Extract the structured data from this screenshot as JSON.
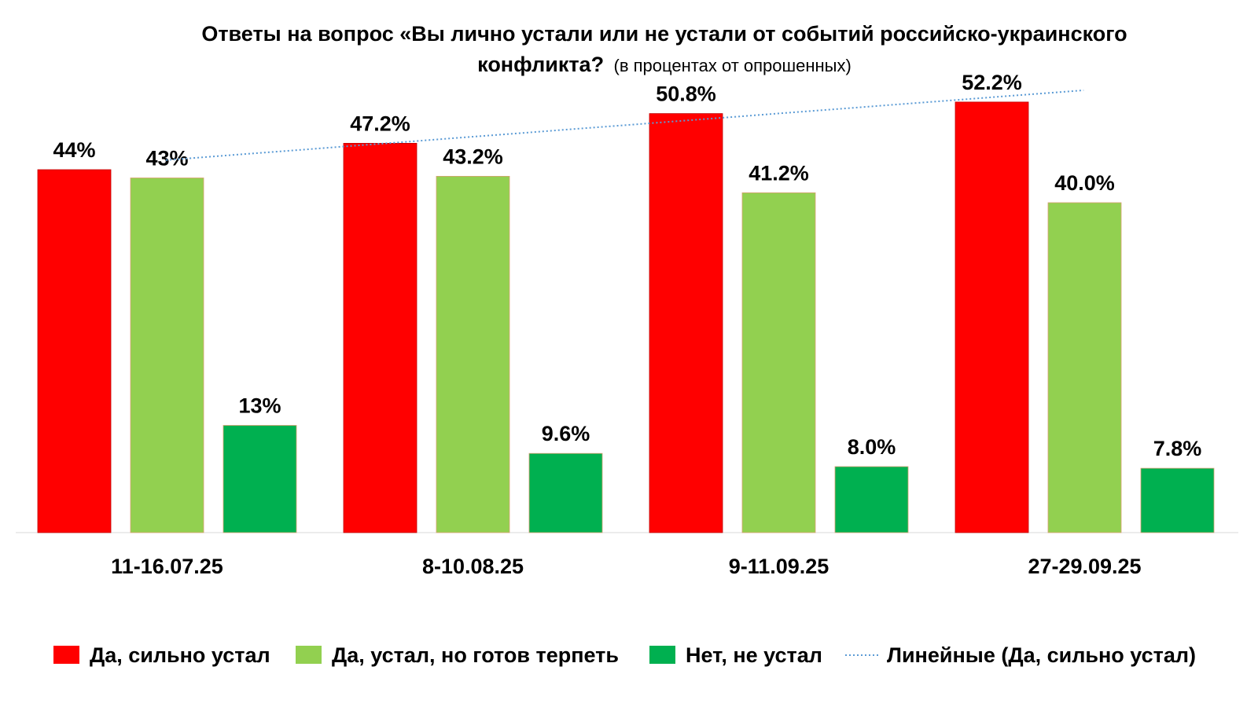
{
  "chart_data": {
    "type": "bar",
    "title": "Ответы на вопрос «Вы лично устали или не устали от событий российско-украинского",
    "title_line2": "конфликта?",
    "subtitle": "(в процентах от опрошенных)",
    "categories": [
      "11-16.07.25",
      "8-10.08.25",
      "9-11.09.25",
      "27-29.09.25"
    ],
    "series": [
      {
        "name": "Да, сильно устал",
        "color": "#ff0000",
        "values": [
          44,
          47.2,
          50.8,
          52.2
        ],
        "labels": [
          "44%",
          "47.2%",
          "50.8%",
          "52.2%"
        ]
      },
      {
        "name": "Да, устал, но готов терпеть",
        "color": "#92d050",
        "values": [
          43,
          43.2,
          41.2,
          40.0
        ],
        "labels": [
          "43%",
          "43.2%",
          "41.2%",
          "40.0%"
        ]
      },
      {
        "name": "Нет, не устал",
        "color": "#00b050",
        "values": [
          13,
          9.6,
          8.0,
          7.8
        ],
        "labels": [
          "13%",
          "9.6%",
          "8.0%",
          "7.8%"
        ]
      }
    ],
    "trendline": {
      "name": "Линейные (Да, сильно устал)",
      "series": "Да, сильно устал",
      "color": "#5b9bd5",
      "style": "dotted"
    },
    "ylim": [
      0,
      60
    ],
    "grid": false,
    "legend_position": "bottom"
  }
}
